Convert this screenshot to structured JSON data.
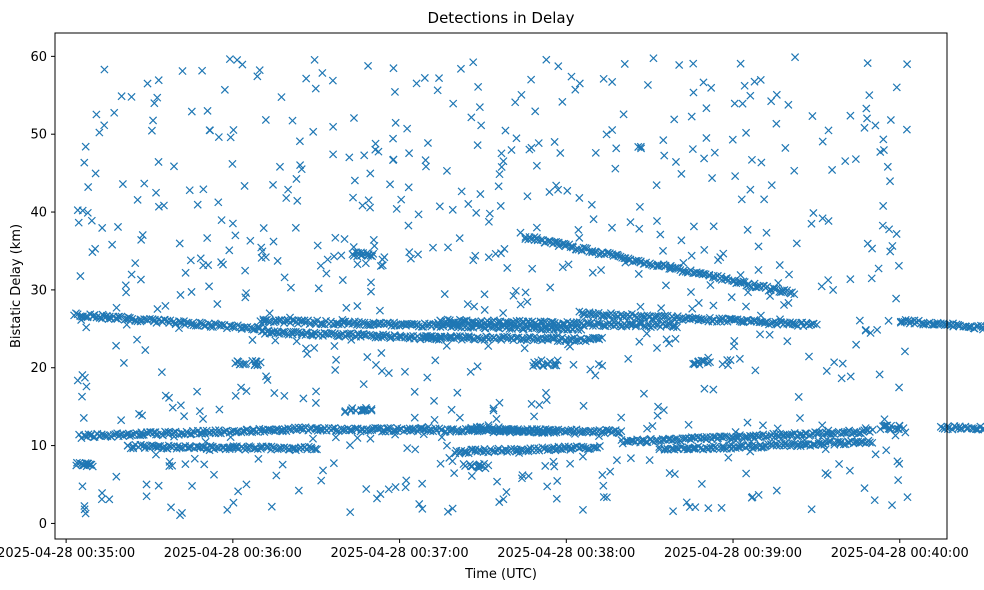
{
  "chart_data": {
    "type": "scatter",
    "title": "Detections in Delay",
    "xlabel": "Time (UTC)",
    "ylabel": "Bistatic Delay (km)",
    "x_ticks": [
      "2025-04-28 00:35:00",
      "2025-04-28 00:36:00",
      "2025-04-28 00:37:00",
      "2025-04-28 00:38:00",
      "2025-04-28 00:39:00",
      "2025-04-28 00:40:00"
    ],
    "y_ticks": [
      0,
      10,
      20,
      30,
      40,
      50,
      60
    ],
    "x_range": [
      "2025-04-28 00:34:56",
      "2025-04-28 00:40:17"
    ],
    "y_range": [
      -2,
      63
    ],
    "marker": "x",
    "color": "#1f77b4",
    "grid": false,
    "series": [
      {
        "tracks": [
          {
            "t": [
              3,
              70
            ],
            "y": [
              26.8,
              25.0
            ]
          },
          {
            "t": [
              70,
              135
            ],
            "y": [
              24.6,
              23.8
            ]
          },
          {
            "t": [
              70,
              185
            ],
            "y": [
              26.0,
              25.0
            ]
          },
          {
            "t": [
              185,
              270
            ],
            "y": [
              27.0,
              25.5
            ]
          },
          {
            "t": [
              300,
              390
            ],
            "y": [
              26.0,
              23.5
            ]
          },
          {
            "t": [
              5,
              90
            ],
            "y": [
              11.2,
              12.2
            ]
          },
          {
            "t": [
              90,
              200
            ],
            "y": [
              12.1,
              11.8
            ]
          },
          {
            "t": [
              200,
              290
            ],
            "y": [
              10.5,
              11.8
            ]
          },
          {
            "t": [
              215,
              290
            ],
            "y": [
              9.5,
              10.5
            ]
          },
          {
            "t": [
              315,
              360
            ],
            "y": [
              12.3,
              12.0
            ]
          },
          {
            "t": [
              335,
              385
            ],
            "y": [
              9.6,
              9.0
            ]
          },
          {
            "t": [
              22,
              90
            ],
            "y": [
              9.9,
              9.6
            ]
          },
          {
            "t": [
              145,
              175
            ],
            "y": [
              12.3,
              11.8
            ]
          },
          {
            "t": [
              134,
              220
            ],
            "y": [
              26.0,
              25.4
            ]
          },
          {
            "t": [
              129,
              192
            ],
            "y": [
              23.9,
              23.6
            ]
          },
          {
            "t": [
              140,
              192
            ],
            "y": [
              9.2,
              9.8
            ]
          },
          {
            "t": [
              165,
              262
            ],
            "y": [
              36.8,
              29.5
            ]
          }
        ],
        "clusters": [
          {
            "t": [
              3,
              10
            ],
            "y": [
              7.2,
              7.8
            ]
          },
          {
            "t": [
              60,
              70
            ],
            "y": [
              20.3,
              20.9
            ]
          },
          {
            "t": [
              103,
              112
            ],
            "y": [
              34.3,
              34.9
            ]
          },
          {
            "t": [
              100,
              110
            ],
            "y": [
              14.4,
              14.9
            ]
          },
          {
            "t": [
              143,
              152
            ],
            "y": [
              7.0,
              7.7
            ]
          },
          {
            "t": [
              168,
              178
            ],
            "y": [
              20.2,
              21.0
            ]
          },
          {
            "t": [
              225,
              240
            ],
            "y": [
              20.3,
              21.0
            ]
          },
          {
            "t": [
              293,
              300
            ],
            "y": [
              12.0,
              12.6
            ]
          }
        ],
        "noise_count": 700,
        "noise_t_range": [
          3,
          303
        ],
        "noise_y_range": [
          1,
          60
        ]
      }
    ]
  }
}
